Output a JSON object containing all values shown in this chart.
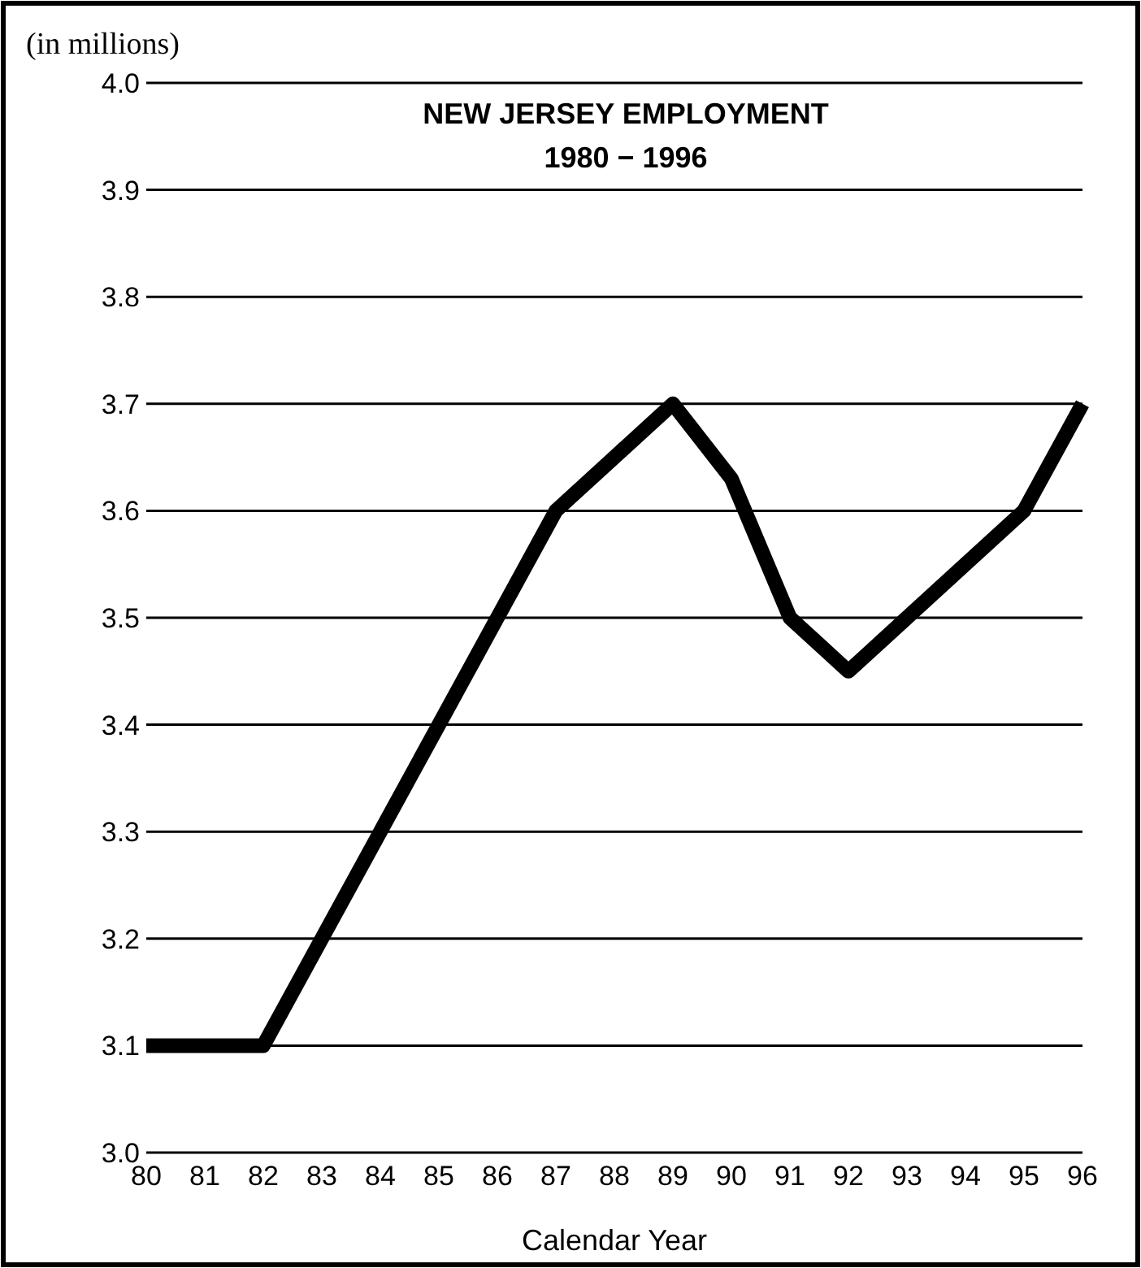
{
  "chart_data": {
    "type": "line",
    "title": "NEW JERSEY EMPLOYMENT",
    "subtitle": "1980 − 1996",
    "xlabel": "Calendar Year",
    "ylabel": "(in millions)",
    "x": [
      80,
      81,
      82,
      83,
      84,
      85,
      86,
      87,
      88,
      89,
      90,
      91,
      92,
      93,
      94,
      95,
      96
    ],
    "series": [
      {
        "color": "#000000",
        "values": [
          3.1,
          3.1,
          3.1,
          3.2,
          3.3,
          3.4,
          3.5,
          3.6,
          3.65,
          3.7,
          3.63,
          3.5,
          3.45,
          3.5,
          3.55,
          3.6,
          3.7
        ]
      }
    ],
    "xlim": [
      80,
      96
    ],
    "xticks": [
      80,
      81,
      82,
      83,
      84,
      85,
      86,
      87,
      88,
      89,
      90,
      91,
      92,
      93,
      94,
      95,
      96
    ],
    "ylim": [
      3.0,
      4.0
    ],
    "yticks": [
      {
        "value": 3.0,
        "label": "3.0"
      },
      3.1,
      3.2,
      3.3,
      3.4,
      3.5,
      3.6,
      3.7,
      3.8,
      3.9,
      {
        "value": 4.0,
        "label": "4.0"
      }
    ],
    "grid": "y",
    "marker": "none",
    "line_style": "solid"
  }
}
